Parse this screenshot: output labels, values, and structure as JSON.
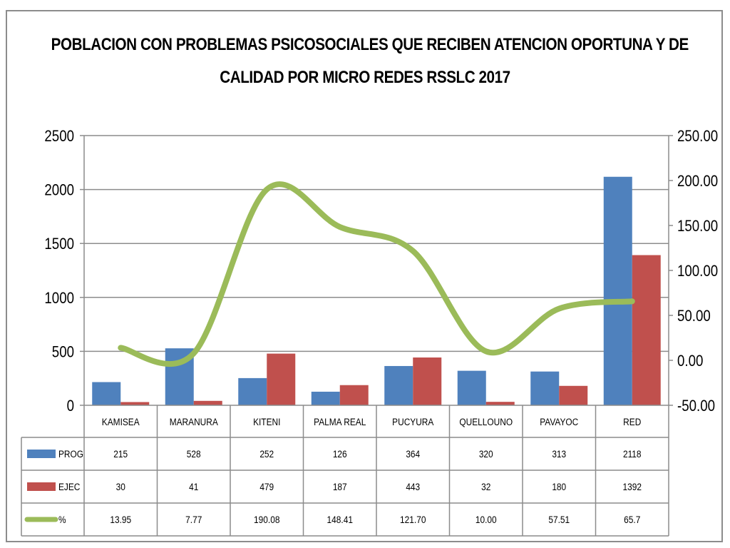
{
  "chart_data": {
    "type": "bar",
    "title_lines": [
      "POBLACION CON PROBLEMAS PSICOSOCIALES  QUE RECIBEN ATENCION OPORTUNA  Y DE",
      "CALIDAD POR MICRO REDES  RSSLC 2017"
    ],
    "categories": [
      "KAMISEA",
      "MARANURA",
      "KITENI",
      "PALMA REAL",
      "PUCYURA",
      "QUELLOUNO",
      "PAVAYOC",
      "RED"
    ],
    "series": [
      {
        "name": "PROG",
        "type": "bar",
        "axis": "left",
        "color": "#4f81bd",
        "values": [
          215,
          528,
          252,
          126,
          364,
          320,
          313,
          2118
        ]
      },
      {
        "name": "EJEC",
        "type": "bar",
        "axis": "left",
        "color": "#c0504d",
        "values": [
          30,
          41,
          479,
          187,
          443,
          32,
          180,
          1392
        ]
      },
      {
        "name": "%",
        "type": "line",
        "axis": "right",
        "color": "#9bbb59",
        "smooth": true,
        "values": [
          13.95,
          7.77,
          190.08,
          148.41,
          121.7,
          10.0,
          57.51,
          65.7
        ]
      }
    ],
    "table_values": {
      "PROG": [
        "215",
        "528",
        "252",
        "126",
        "364",
        "320",
        "313",
        "2118"
      ],
      "EJEC": [
        "30",
        "41",
        "479",
        "187",
        "443",
        "32",
        "180",
        "1392"
      ],
      "%": [
        "13.95",
        "7.77",
        "190.08",
        "148.41",
        "121.70",
        "10.00",
        "57.51",
        "65.7"
      ]
    },
    "y_left": {
      "min": 0,
      "max": 2500,
      "ticks": [
        "0",
        "500",
        "1000",
        "1500",
        "2000",
        "2500"
      ]
    },
    "y_right": {
      "min": -50,
      "max": 250,
      "ticks": [
        "-50.00",
        "0.00",
        "50.00",
        "100.00",
        "150.00",
        "200.00",
        "250.00"
      ]
    },
    "grid": true,
    "legend": "data-table"
  }
}
